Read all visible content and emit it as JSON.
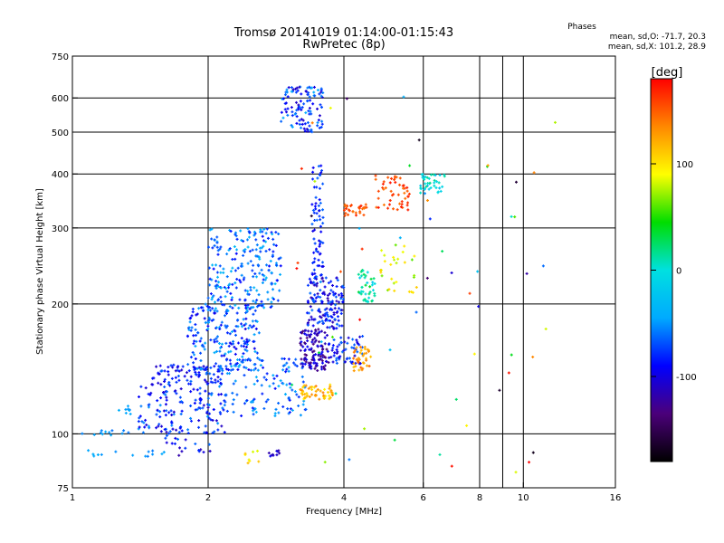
{
  "chart_data": {
    "type": "scatter",
    "title": "Tromsø 20141019 01:14:00-01:15:43",
    "subtitle": "RwPretec (8p)",
    "stats_title": "Phases",
    "stats_lines": [
      "mean, sd,O: -71.7, 20.3",
      "mean, sd,X: 101.2, 28.9"
    ],
    "xlabel": "Frequency [MHz]",
    "ylabel": "Stationary phase Virtual Height [km]",
    "x_scale": "log2",
    "y_scale": "log",
    "xlim": [
      1,
      16
    ],
    "ylim": [
      75,
      750
    ],
    "x_ticks": [
      1,
      2,
      4,
      6,
      8,
      10,
      16
    ],
    "x_gridlines": [
      2,
      4,
      6,
      8,
      9,
      10
    ],
    "y_ticks": [
      75,
      100,
      200,
      300,
      400,
      500,
      600,
      750
    ],
    "y_gridlines": [
      100,
      200,
      300,
      400,
      500,
      600
    ],
    "grid": true,
    "colorbar": {
      "label": "[deg]",
      "range": [
        -180,
        180
      ],
      "ticks": [
        100,
        0,
        -100
      ],
      "colors": [
        "#000000",
        "#4b007a",
        "#0000ff",
        "#00aaff",
        "#00e0e0",
        "#00dd00",
        "#ffff00",
        "#ff8800",
        "#ff0000"
      ]
    },
    "clusters": [
      {
        "f": [
          1.0,
          1.6
        ],
        "h": [
          88,
          92
        ],
        "phase": [
          -60,
          -40
        ],
        "n": 14
      },
      {
        "f": [
          1.05,
          1.35
        ],
        "h": [
          99,
          103
        ],
        "phase": [
          -60,
          -40
        ],
        "n": 12
      },
      {
        "f": [
          1.25,
          1.35
        ],
        "h": [
          110,
          116
        ],
        "phase": [
          -60,
          -30
        ],
        "n": 8
      },
      {
        "f": [
          1.4,
          2.2
        ],
        "h": [
          100,
          130
        ],
        "phase": [
          -110,
          -50
        ],
        "n": 140
      },
      {
        "f": [
          1.5,
          2.2
        ],
        "h": [
          130,
          145
        ],
        "phase": [
          -110,
          -60
        ],
        "n": 90
      },
      {
        "f": [
          1.6,
          2.1
        ],
        "h": [
          88,
          105
        ],
        "phase": [
          -120,
          -60
        ],
        "n": 25
      },
      {
        "f": [
          1.8,
          2.6
        ],
        "h": [
          140,
          200
        ],
        "phase": [
          -100,
          -40
        ],
        "n": 200
      },
      {
        "f": [
          2.0,
          2.9
        ],
        "h": [
          195,
          300
        ],
        "phase": [
          -90,
          -30
        ],
        "n": 220
      },
      {
        "f": [
          2.2,
          3.3
        ],
        "h": [
          110,
          150
        ],
        "phase": [
          -90,
          -40
        ],
        "n": 120
      },
      {
        "f": [
          2.4,
          2.6
        ],
        "h": [
          85,
          92
        ],
        "phase": [
          80,
          130
        ],
        "n": 8
      },
      {
        "f": [
          2.6,
          2.9
        ],
        "h": [
          87,
          92
        ],
        "phase": [
          -120,
          -90
        ],
        "n": 10
      },
      {
        "f": [
          2.9,
          3.6
        ],
        "h": [
          500,
          640
        ],
        "phase": [
          -110,
          -40
        ],
        "n": 110
      },
      {
        "f": [
          3.2,
          3.7
        ],
        "h": [
          140,
          175
        ],
        "phase": [
          -140,
          -90
        ],
        "n": 120
      },
      {
        "f": [
          3.2,
          3.8
        ],
        "h": [
          120,
          130
        ],
        "phase": [
          90,
          140
        ],
        "n": 50
      },
      {
        "f": [
          3.3,
          4.0
        ],
        "h": [
          175,
          230
        ],
        "phase": [
          -120,
          -60
        ],
        "n": 140
      },
      {
        "f": [
          3.4,
          3.6
        ],
        "h": [
          230,
          420
        ],
        "phase": [
          -100,
          -60
        ],
        "n": 70
      },
      {
        "f": [
          3.7,
          4.4
        ],
        "h": [
          145,
          170
        ],
        "phase": [
          -110,
          -60
        ],
        "n": 60
      },
      {
        "f": [
          4.0,
          4.5
        ],
        "h": [
          320,
          340
        ],
        "phase": [
          140,
          170
        ],
        "n": 30
      },
      {
        "f": [
          4.2,
          4.6
        ],
        "h": [
          140,
          160
        ],
        "phase": [
          110,
          150
        ],
        "n": 35
      },
      {
        "f": [
          4.3,
          4.7
        ],
        "h": [
          200,
          240
        ],
        "phase": [
          -20,
          40
        ],
        "n": 40
      },
      {
        "f": [
          4.7,
          5.6
        ],
        "h": [
          330,
          400
        ],
        "phase": [
          140,
          175
        ],
        "n": 50
      },
      {
        "f": [
          4.8,
          5.8
        ],
        "h": [
          210,
          280
        ],
        "phase": [
          60,
          110
        ],
        "n": 30
      },
      {
        "f": [
          5.9,
          6.7
        ],
        "h": [
          360,
          400
        ],
        "phase": [
          -30,
          20
        ],
        "n": 40
      },
      {
        "f": [
          3.0,
          12.0
        ],
        "h": [
          80,
          650
        ],
        "phase": [
          -180,
          180
        ],
        "n": 60
      }
    ]
  }
}
